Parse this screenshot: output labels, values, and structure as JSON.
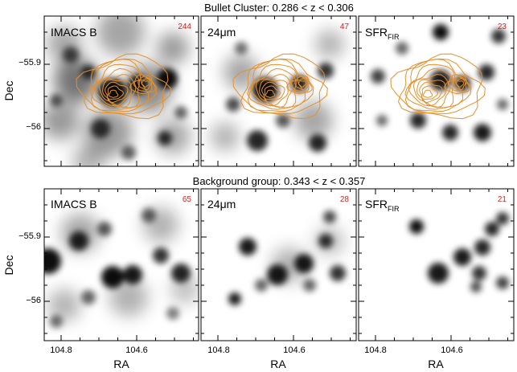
{
  "rows": [
    {
      "title": "Bullet Cluster: 0.286 < z < 0.306",
      "contours": true,
      "panels": [
        {
          "label": "IMACS B",
          "count": "244"
        },
        {
          "label": "24μm",
          "count": "47"
        },
        {
          "label": "SFR",
          "label_sub": "FIR",
          "count": "23"
        }
      ]
    },
    {
      "title": "Background group: 0.343 < z < 0.357",
      "contours": false,
      "panels": [
        {
          "label": "IMACS B",
          "count": "65"
        },
        {
          "label": "24μm",
          "count": "28"
        },
        {
          "label": "SFR",
          "label_sub": "FIR",
          "count": "21"
        }
      ]
    }
  ],
  "axes": {
    "xlabel": "RA",
    "ylabel": "Dec",
    "x_ticks": [
      "104.8",
      "104.6"
    ],
    "y_ticks": [
      "−55.9",
      "−56"
    ]
  },
  "colors": {
    "contour": "#e8902a",
    "count": "#e0201a",
    "blob": "#000000"
  }
}
